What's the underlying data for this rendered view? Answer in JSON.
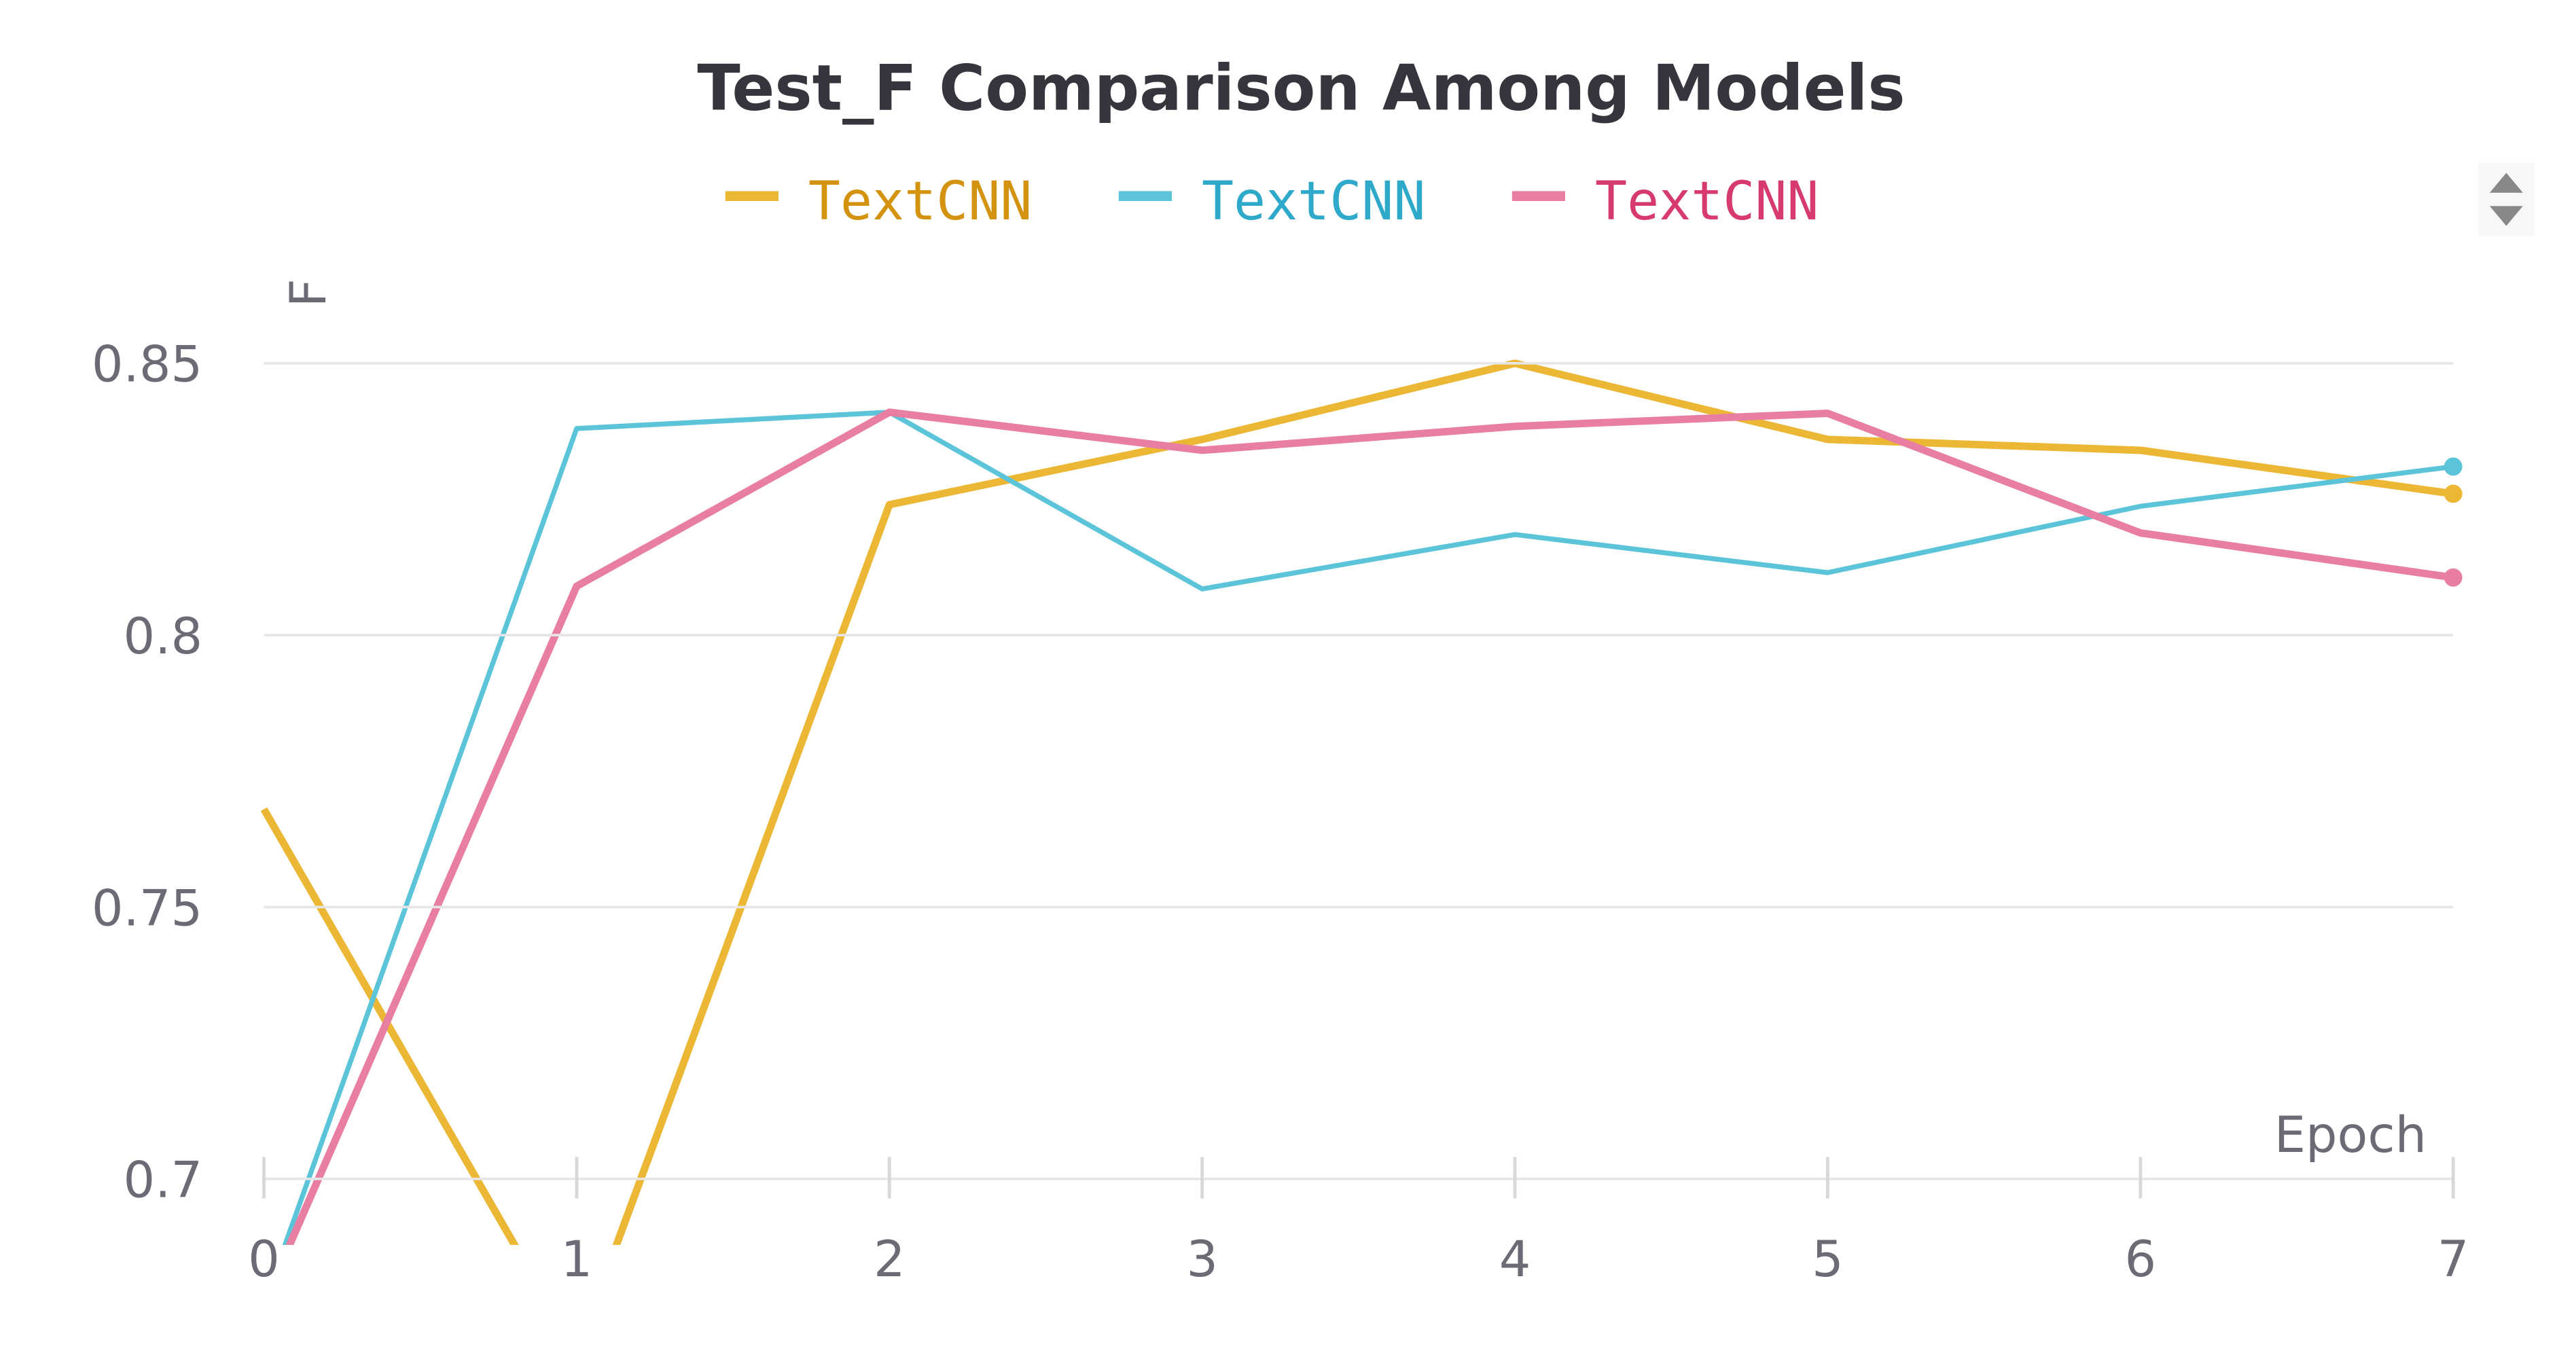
{
  "chart_data": {
    "type": "line",
    "title": "Test_F Comparison Among Models",
    "x_label": "Epoch",
    "y_label": "F",
    "x": [
      0,
      1,
      2,
      3,
      4,
      5,
      6,
      7
    ],
    "series": [
      {
        "name": "TextCNN",
        "color": "#ebb734",
        "legend_text_color": "#d4930f",
        "values": [
          0.768,
          0.668,
          0.824,
          0.836,
          0.85,
          0.836,
          0.834,
          0.826
        ]
      },
      {
        "name": "TextCNN",
        "color": "#5bc4d8",
        "legend_text_color": "#2ea9c9",
        "values": [
          0.677,
          0.838,
          0.841,
          0.8085,
          0.8185,
          0.8115,
          0.8237,
          0.831
        ]
      },
      {
        "name": "TextCNN",
        "color": "#e87fa3",
        "legend_text_color": "#d63a6f",
        "values": [
          0.677,
          0.809,
          0.841,
          0.834,
          0.8384,
          0.8408,
          0.8188,
          0.8106
        ]
      }
    ],
    "xlim": [
      0,
      7
    ],
    "xticks": [
      0,
      1,
      2,
      3,
      4,
      5,
      6,
      7
    ],
    "ylim": [
      0.69,
      0.86
    ],
    "yticks": [
      0.7,
      0.75,
      0.8,
      0.85
    ],
    "grid": true
  }
}
